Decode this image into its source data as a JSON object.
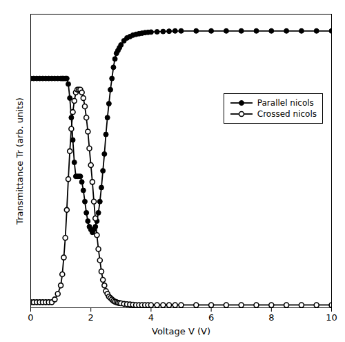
{
  "chart_data": {
    "type": "line",
    "title": "",
    "xlabel": "Voltage V (V)",
    "ylabel": "Transmittance Tr (arb. units)",
    "xlim": [
      0,
      10
    ],
    "ylim": [
      0,
      1.05
    ],
    "xticks": [
      0,
      2,
      4,
      6,
      8,
      10
    ],
    "tick_labels": "x",
    "legend": "center right",
    "x": [
      0.0,
      0.1,
      0.2,
      0.3,
      0.4,
      0.5,
      0.6,
      0.7,
      0.8,
      0.9,
      1.0,
      1.05,
      1.1,
      1.15,
      1.2,
      1.25,
      1.3,
      1.35,
      1.4,
      1.45,
      1.5,
      1.55,
      1.6,
      1.65,
      1.7,
      1.75,
      1.8,
      1.85,
      1.9,
      1.95,
      2.0,
      2.05,
      2.1,
      2.15,
      2.2,
      2.25,
      2.3,
      2.35,
      2.4,
      2.45,
      2.5,
      2.55,
      2.6,
      2.65,
      2.7,
      2.75,
      2.8,
      2.85,
      2.9,
      2.95,
      3.0,
      3.1,
      3.2,
      3.3,
      3.4,
      3.5,
      3.6,
      3.7,
      3.8,
      3.9,
      4.0,
      4.2,
      4.4,
      4.6,
      4.8,
      5.0,
      5.5,
      6.0,
      6.5,
      7.0,
      7.5,
      8.0,
      8.5,
      9.0,
      9.5,
      10.0
    ],
    "series": [
      {
        "name": "Parallel nicols",
        "color": "#000000",
        "marker": "circle",
        "line_style": "solid",
        "values": [
          0.82,
          0.82,
          0.82,
          0.82,
          0.82,
          0.82,
          0.82,
          0.82,
          0.82,
          0.82,
          0.82,
          0.82,
          0.82,
          0.82,
          0.82,
          0.8,
          0.75,
          0.68,
          0.6,
          0.52,
          0.47,
          0.47,
          0.47,
          0.47,
          0.45,
          0.42,
          0.38,
          0.34,
          0.31,
          0.29,
          0.28,
          0.27,
          0.28,
          0.29,
          0.31,
          0.34,
          0.38,
          0.43,
          0.49,
          0.55,
          0.62,
          0.68,
          0.73,
          0.78,
          0.82,
          0.86,
          0.89,
          0.91,
          0.92,
          0.93,
          0.94,
          0.955,
          0.965,
          0.97,
          0.975,
          0.978,
          0.98,
          0.982,
          0.984,
          0.985,
          0.986,
          0.987,
          0.988,
          0.989,
          0.99,
          0.99,
          0.99,
          0.99,
          0.99,
          0.99,
          0.99,
          0.99,
          0.99,
          0.99,
          0.99,
          0.99
        ]
      },
      {
        "name": "Crossed nicols",
        "color": "#000000",
        "marker": "open_circle",
        "line_style": "solid",
        "values": [
          0.02,
          0.02,
          0.02,
          0.02,
          0.02,
          0.02,
          0.02,
          0.02,
          0.03,
          0.05,
          0.08,
          0.12,
          0.18,
          0.25,
          0.35,
          0.46,
          0.56,
          0.64,
          0.7,
          0.74,
          0.77,
          0.78,
          0.78,
          0.78,
          0.77,
          0.75,
          0.72,
          0.68,
          0.63,
          0.57,
          0.51,
          0.45,
          0.38,
          0.32,
          0.26,
          0.21,
          0.17,
          0.13,
          0.1,
          0.08,
          0.06,
          0.05,
          0.04,
          0.035,
          0.03,
          0.025,
          0.022,
          0.02,
          0.018,
          0.017,
          0.016,
          0.014,
          0.013,
          0.012,
          0.011,
          0.01,
          0.01,
          0.01,
          0.01,
          0.01,
          0.01,
          0.01,
          0.01,
          0.01,
          0.01,
          0.01,
          0.01,
          0.01,
          0.01,
          0.01,
          0.01,
          0.01,
          0.01,
          0.01,
          0.01,
          0.01
        ]
      }
    ]
  }
}
